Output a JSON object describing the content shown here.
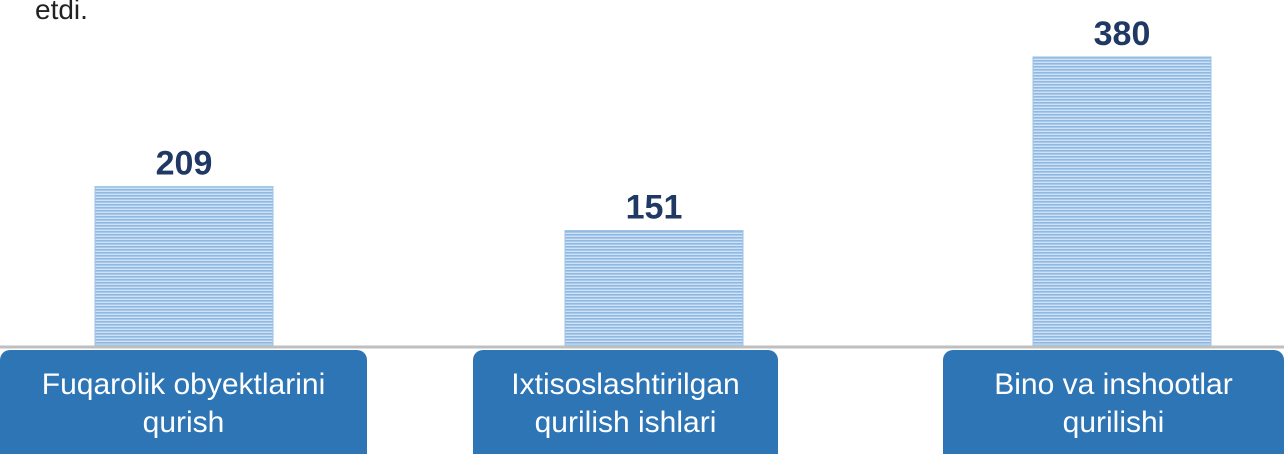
{
  "chart_data": {
    "type": "bar",
    "caption": "etdi.",
    "categories": [
      "Fuqarolik obyektlarini qurish",
      "Ixtisoslashtirilgan qurilish ishlari",
      "Bino va inshootlar qurilishi"
    ],
    "values": [
      209,
      151,
      380
    ],
    "color": "#9dc3e6"
  }
}
